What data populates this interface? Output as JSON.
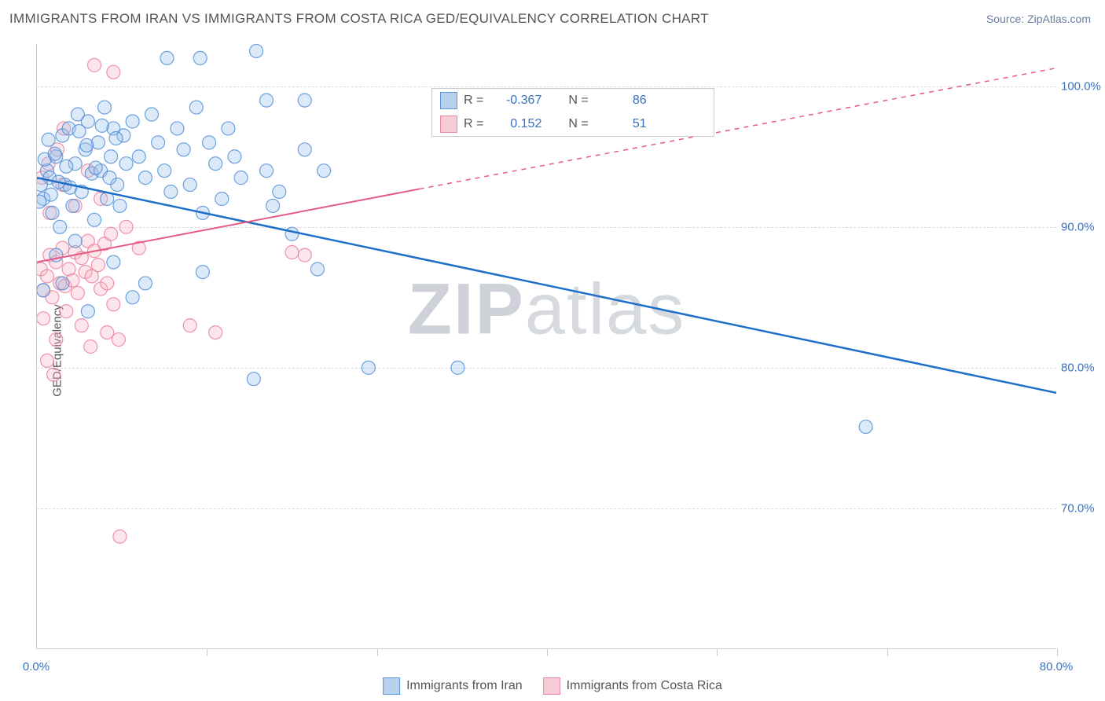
{
  "title": "IMMIGRANTS FROM IRAN VS IMMIGRANTS FROM COSTA RICA GED/EQUIVALENCY CORRELATION CHART",
  "source": "Source: ZipAtlas.com",
  "y_axis_label": "GED/Equivalency",
  "watermark": {
    "bold": "ZIP",
    "light": "atlas"
  },
  "chart": {
    "type": "scatter-with-regression",
    "background_color": "#ffffff",
    "grid_color": "#dcdcdc",
    "axis_color": "#c9c9c9",
    "tick_label_color": "#3a6fbf",
    "xlim": [
      0,
      80
    ],
    "ylim": [
      60,
      103
    ],
    "y_ticks": [
      70,
      80,
      90,
      100
    ],
    "y_tick_labels": [
      "70.0%",
      "80.0%",
      "90.0%",
      "100.0%"
    ],
    "x_labels": [
      {
        "value": 0,
        "label": "0.0%"
      },
      {
        "value": 80,
        "label": "80.0%"
      }
    ],
    "x_tick_marks": [
      13.3,
      26.7,
      40,
      53.3,
      66.7,
      80
    ],
    "marker_radius": 8.5
  },
  "series": {
    "iran": {
      "name": "Immigrants from Iran",
      "color_fill": "#9cc1ea",
      "color_stroke": "#4b8bd6",
      "swatch_fill": "#b8d1ef",
      "swatch_border": "#5a96da",
      "R": "-0.367",
      "N": "86",
      "regression": {
        "x1": 0,
        "y1": 93.5,
        "x2": 80,
        "y2": 78.2
      },
      "line_color": "#1d6fc9",
      "line_width": 2.5,
      "points": [
        [
          0.5,
          92
        ],
        [
          0.8,
          94
        ],
        [
          1,
          93.5
        ],
        [
          1.2,
          91
        ],
        [
          1.5,
          95
        ],
        [
          1.8,
          90
        ],
        [
          2,
          96.5
        ],
        [
          2.2,
          93
        ],
        [
          2.5,
          97
        ],
        [
          2.8,
          91.5
        ],
        [
          3,
          94.5
        ],
        [
          3.2,
          98
        ],
        [
          3.5,
          92.5
        ],
        [
          3.8,
          95.5
        ],
        [
          4,
          97.5
        ],
        [
          4.3,
          93.8
        ],
        [
          4.5,
          90.5
        ],
        [
          4.8,
          96
        ],
        [
          5,
          94
        ],
        [
          5.3,
          98.5
        ],
        [
          5.5,
          92
        ],
        [
          5.8,
          95
        ],
        [
          6,
          97
        ],
        [
          6.3,
          93
        ],
        [
          6.5,
          91.5
        ],
        [
          6.8,
          96.5
        ],
        [
          7,
          94.5
        ],
        [
          7.5,
          97.5
        ],
        [
          8,
          95
        ],
        [
          8.5,
          93.5
        ],
        [
          9,
          98
        ],
        [
          9.5,
          96
        ],
        [
          10,
          94
        ],
        [
          10.2,
          102
        ],
        [
          10.5,
          92.5
        ],
        [
          11,
          97
        ],
        [
          11.5,
          95.5
        ],
        [
          12,
          93
        ],
        [
          12.5,
          98.5
        ],
        [
          12.8,
          102
        ],
        [
          13,
          91
        ],
        [
          13.5,
          96
        ],
        [
          14,
          94.5
        ],
        [
          14.5,
          92
        ],
        [
          15,
          97
        ],
        [
          15.5,
          95
        ],
        [
          16,
          93.5
        ],
        [
          17,
          79.2
        ],
        [
          17.2,
          102.5
        ],
        [
          18,
          94
        ],
        [
          18.5,
          91.5
        ],
        [
          19,
          92.5
        ],
        [
          20,
          89.5
        ],
        [
          21,
          95.5
        ],
        [
          22,
          87
        ],
        [
          22.5,
          94
        ],
        [
          13,
          86.8
        ],
        [
          7.5,
          85
        ],
        [
          6,
          87.5
        ],
        [
          8.5,
          86
        ],
        [
          0.5,
          85.5
        ],
        [
          2,
          86
        ],
        [
          26,
          80
        ],
        [
          33,
          80
        ],
        [
          18,
          99
        ],
        [
          21,
          99
        ],
        [
          4,
          84
        ],
        [
          1.5,
          88
        ],
        [
          3,
          89
        ],
        [
          0.3,
          93
        ],
        [
          0.6,
          94.8
        ],
        [
          1.1,
          92.3
        ],
        [
          1.4,
          95.2
        ],
        [
          0.2,
          91.8
        ],
        [
          2.3,
          94.3
        ],
        [
          0.9,
          96.2
        ],
        [
          1.7,
          93.2
        ],
        [
          2.6,
          92.8
        ],
        [
          3.3,
          96.8
        ],
        [
          3.9,
          95.8
        ],
        [
          4.6,
          94.2
        ],
        [
          5.1,
          97.2
        ],
        [
          5.7,
          93.5
        ],
        [
          6.2,
          96.3
        ],
        [
          65,
          75.8
        ]
      ]
    },
    "costa_rica": {
      "name": "Immigrants from Costa Rica",
      "color_fill": "#f5b8c7",
      "color_stroke": "#e87a9a",
      "swatch_fill": "#f8ccd7",
      "swatch_border": "#ea8ba6",
      "R": "0.152",
      "N": "51",
      "regression_solid": {
        "x1": 0,
        "y1": 87.5,
        "x2": 30,
        "y2": 92.7
      },
      "regression_dashed": {
        "x1": 30,
        "y1": 92.7,
        "x2": 80,
        "y2": 101.3
      },
      "line_color": "#e65a85",
      "line_width": 2,
      "points": [
        [
          0.3,
          87
        ],
        [
          0.5,
          85.5
        ],
        [
          0.8,
          86.5
        ],
        [
          1,
          88
        ],
        [
          1.2,
          85
        ],
        [
          1.5,
          87.5
        ],
        [
          1.8,
          86
        ],
        [
          2,
          88.5
        ],
        [
          2.2,
          85.8
        ],
        [
          2.5,
          87
        ],
        [
          2.8,
          86.2
        ],
        [
          3,
          88.2
        ],
        [
          3.2,
          85.3
        ],
        [
          3.5,
          87.8
        ],
        [
          3.8,
          86.8
        ],
        [
          4,
          89
        ],
        [
          4.3,
          86.5
        ],
        [
          4.5,
          88.3
        ],
        [
          4.8,
          87.3
        ],
        [
          5,
          85.6
        ],
        [
          5.3,
          88.8
        ],
        [
          5.5,
          86
        ],
        [
          5.8,
          89.5
        ],
        [
          6,
          84.5
        ],
        [
          6.4,
          82
        ],
        [
          1,
          91
        ],
        [
          2,
          93
        ],
        [
          3,
          91.5
        ],
        [
          4,
          94
        ],
        [
          5,
          92
        ],
        [
          4.5,
          101.5
        ],
        [
          6,
          101
        ],
        [
          7,
          90
        ],
        [
          8,
          88.5
        ],
        [
          3.5,
          83
        ],
        [
          4.2,
          81.5
        ],
        [
          5.5,
          82.5
        ],
        [
          0.5,
          83.5
        ],
        [
          1.5,
          82
        ],
        [
          2.3,
          84
        ],
        [
          0.8,
          80.5
        ],
        [
          1.3,
          79.5
        ],
        [
          6.5,
          68
        ],
        [
          12,
          83
        ],
        [
          14,
          82.5
        ],
        [
          20,
          88.2
        ],
        [
          21,
          88
        ],
        [
          0.4,
          93.5
        ],
        [
          0.9,
          94.5
        ],
        [
          1.6,
          95.5
        ],
        [
          2.1,
          97
        ]
      ]
    }
  },
  "legend_top": {
    "R_label": "R =",
    "N_label": "N ="
  }
}
